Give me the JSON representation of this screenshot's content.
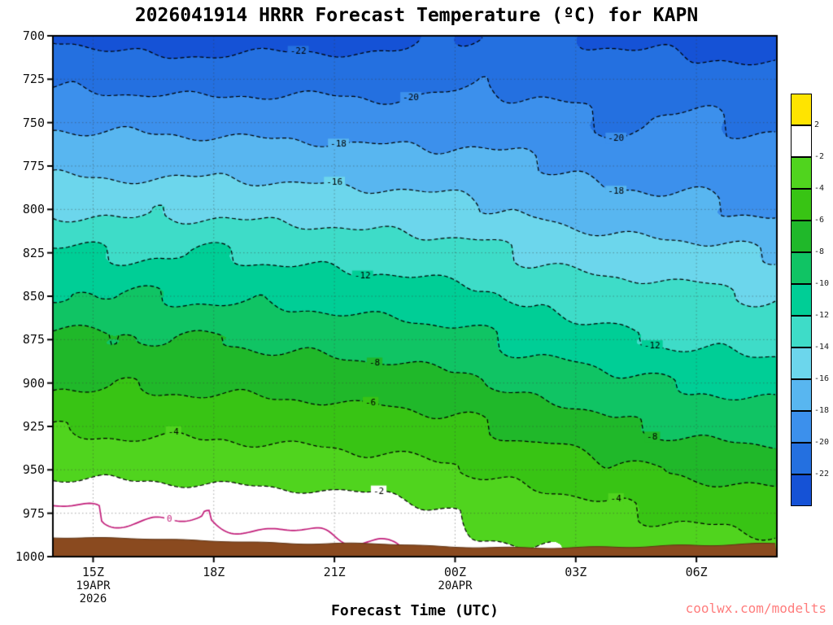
{
  "title": "2026041914 HRRR Forecast Temperature (ºC) for KAPN",
  "credit": "coolwx.com/modelts",
  "x_axis": {
    "title": "Forecast Time (UTC)",
    "ticks": [
      {
        "label": "15Z",
        "hours_after_start": 1
      },
      {
        "label": "18Z",
        "hours_after_start": 4
      },
      {
        "label": "21Z",
        "hours_after_start": 7
      },
      {
        "label": "00Z",
        "hours_after_start": 10
      },
      {
        "label": "03Z",
        "hours_after_start": 13
      },
      {
        "label": "06Z",
        "hours_after_start": 16
      }
    ],
    "date_labels": [
      {
        "hours_after_start": 1,
        "lines": [
          "19APR",
          "2026"
        ]
      },
      {
        "hours_after_start": 10,
        "lines": [
          "20APR"
        ]
      }
    ]
  },
  "y_axis": {
    "ticks": [
      700,
      725,
      750,
      775,
      800,
      825,
      850,
      875,
      900,
      925,
      950,
      975,
      1000
    ]
  },
  "colorbar": {
    "edge_labels": [
      "2",
      "-2",
      "-4",
      "-6",
      "-8",
      "-10",
      "-12",
      "-14",
      "-16",
      "-18",
      "-20",
      "-22"
    ]
  },
  "chart_data": {
    "type": "heatmap",
    "title": "2026041914 HRRR Forecast Temperature (ºC) for KAPN",
    "xlabel": "Forecast Time (UTC)",
    "time_span_hours": 18,
    "time_points_hours": [
      0,
      2,
      4,
      6,
      8,
      10,
      12,
      14,
      16,
      18
    ],
    "pressure_levels": [
      700,
      725,
      750,
      775,
      800,
      825,
      850,
      875,
      900,
      925,
      950,
      975,
      1000
    ],
    "temperature_grid_c": [
      [
        -21.9,
        -22.8,
        -23.0,
        -22.6,
        -22.8,
        -21.9,
        -21.7,
        -22.2,
        -22.6,
        -23.2
      ],
      [
        -20.3,
        -20.6,
        -20.8,
        -20.5,
        -20.8,
        -20.3,
        -20.4,
        -20.9,
        -21.3,
        -21.7
      ],
      [
        -18.1,
        -18.3,
        -18.5,
        -18.7,
        -19.0,
        -18.9,
        -19.2,
        -20.3,
        -19.8,
        -20.3
      ],
      [
        -16.3,
        -16.5,
        -16.4,
        -16.8,
        -17.1,
        -17.4,
        -17.8,
        -18.6,
        -18.8,
        -19.0
      ],
      [
        -14.1,
        -14.3,
        -14.2,
        -14.6,
        -15.0,
        -15.5,
        -16.3,
        -17.4,
        -17.7,
        -18.2
      ],
      [
        -11.9,
        -12.1,
        -12.0,
        -12.4,
        -12.9,
        -13.4,
        -14.2,
        -15.2,
        -15.6,
        -16.1
      ],
      [
        -9.8,
        -10.0,
        -10.1,
        -10.4,
        -10.9,
        -11.5,
        -12.4,
        -13.2,
        -13.6,
        -14.2
      ],
      [
        -7.7,
        -7.9,
        -8.0,
        -8.4,
        -8.9,
        -9.5,
        -10.6,
        -11.8,
        -12.3,
        -12.6
      ],
      [
        -6.0,
        -6.2,
        -6.3,
        -6.6,
        -7.0,
        -7.6,
        -8.6,
        -9.6,
        -10.2,
        -10.6
      ],
      [
        -4.2,
        -4.3,
        -4.4,
        -4.7,
        -5.1,
        -5.7,
        -6.5,
        -7.9,
        -8.5,
        -8.8
      ],
      [
        -2.2,
        -2.4,
        -2.6,
        -3.0,
        -3.4,
        -3.9,
        -4.6,
        -5.7,
        -6.3,
        -6.7
      ],
      [
        0.1,
        -0.1,
        -0.3,
        -0.6,
        -0.9,
        -2.2,
        -3.0,
        -3.8,
        -4.3,
        -4.8
      ],
      [
        1.5,
        1.4,
        1.2,
        0.9,
        0.5,
        -1.3,
        -2.0,
        -2.4,
        -2.8,
        -3.2
      ]
    ],
    "surface_pressure_hpa": [
      989,
      989.5,
      991,
      992.5,
      992.5,
      994.5,
      995,
      994.5,
      993.5,
      992.5
    ],
    "contour_interval_c": 2,
    "contour_levels_dashed": [
      -22,
      -20,
      -18,
      -16,
      -14,
      -12,
      -10,
      -8,
      -6,
      -4,
      -2
    ],
    "freezing_line_level": 0,
    "band_edges_c": [
      2,
      -2,
      -4,
      -6,
      -8,
      -10,
      -12,
      -14,
      -16,
      -18,
      -20,
      -22
    ],
    "band_colors": [
      "#FFE400",
      "#FFFFFF",
      "#50D41E",
      "#38C414",
      "#20B82A",
      "#10C464",
      "#00CE96",
      "#3EDCC8",
      "#6CD6EC",
      "#58B6F0",
      "#3C90EC",
      "#2470E0",
      "#1552D6"
    ],
    "underground_color": "#8A4A1F",
    "underground_edge_color": "#5E3212",
    "freezing_line_color": "#C21E7A",
    "contour_color": "#000000",
    "contour_labels": [
      {
        "level": -22,
        "t": 6.1
      },
      {
        "level": -20,
        "t": 8.9
      },
      {
        "level": -20,
        "t": 14.0
      },
      {
        "level": -18,
        "t": 7.1
      },
      {
        "level": -18,
        "t": 14.0
      },
      {
        "level": -16,
        "t": 7.0
      },
      {
        "level": -12,
        "t": 7.7
      },
      {
        "level": -12,
        "t": 14.9
      },
      {
        "level": -8,
        "t": 8.0
      },
      {
        "level": -8,
        "t": 14.9
      },
      {
        "level": -6,
        "t": 7.9
      },
      {
        "level": -4,
        "t": 3.0
      },
      {
        "level": -4,
        "t": 14.0
      },
      {
        "level": -2,
        "t": 8.1
      },
      {
        "level": 0,
        "t": 2.9
      }
    ]
  }
}
